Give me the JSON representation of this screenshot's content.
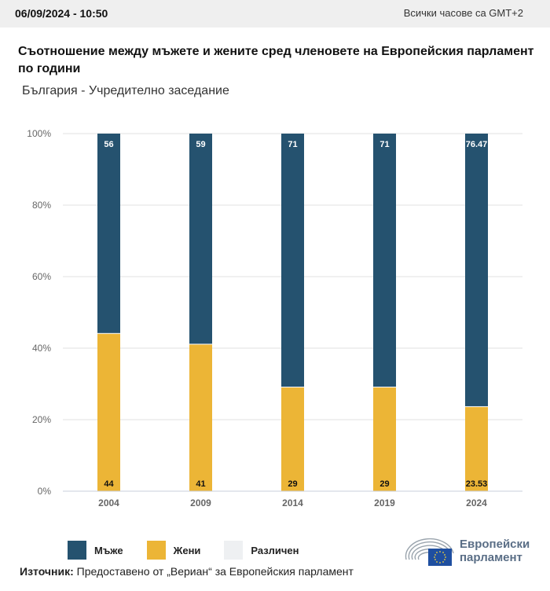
{
  "topbar": {
    "datetime": "06/09/2024 - 10:50",
    "timezone": "Всички часове са GMT+2"
  },
  "header": {
    "title": "Съотношение между мъжете и жените сред членовете на Европейския парламент по години",
    "subtitle": "България - Учредително заседание"
  },
  "colors": {
    "men": "#25526f",
    "women": "#ecb536",
    "other": "#eef0f2",
    "grid": "#e2e2e2",
    "axis": "#c9cfdb"
  },
  "chart_data": {
    "type": "bar",
    "stacked": true,
    "title": "Съотношение между мъжете и жените сред членовете на Европейския парламент по години",
    "subtitle": "България - Учредително заседание",
    "xlabel": "",
    "ylabel": "",
    "ylim": [
      0,
      100
    ],
    "yticks": [
      "0%",
      "20%",
      "40%",
      "60%",
      "80%",
      "100%"
    ],
    "grid": true,
    "categories": [
      "2004",
      "2009",
      "2014",
      "2019",
      "2024"
    ],
    "series": [
      {
        "name": "Жени",
        "values": [
          44,
          41,
          29,
          29,
          23.53
        ],
        "labels": [
          "44",
          "41",
          "29",
          "29",
          "23.53"
        ]
      },
      {
        "name": "Мъже",
        "values": [
          56,
          59,
          71,
          71,
          76.47
        ],
        "labels": [
          "56",
          "59",
          "71",
          "71",
          "76.47"
        ]
      },
      {
        "name": "Различен",
        "values": [
          0,
          0,
          0,
          0,
          0
        ]
      }
    ],
    "legend_position": "bottom-left"
  },
  "legend": [
    {
      "label": "Мъже",
      "color": "#25526f"
    },
    {
      "label": "Жени",
      "color": "#ecb536"
    },
    {
      "label": "Различен",
      "color": "#eef0f2"
    }
  ],
  "footer": {
    "source_label": "Източник:",
    "source_text": " Предоставено от „Вериан“ за Европейския парламент",
    "logo_line1": "Европейски",
    "logo_line2": "парламент"
  }
}
